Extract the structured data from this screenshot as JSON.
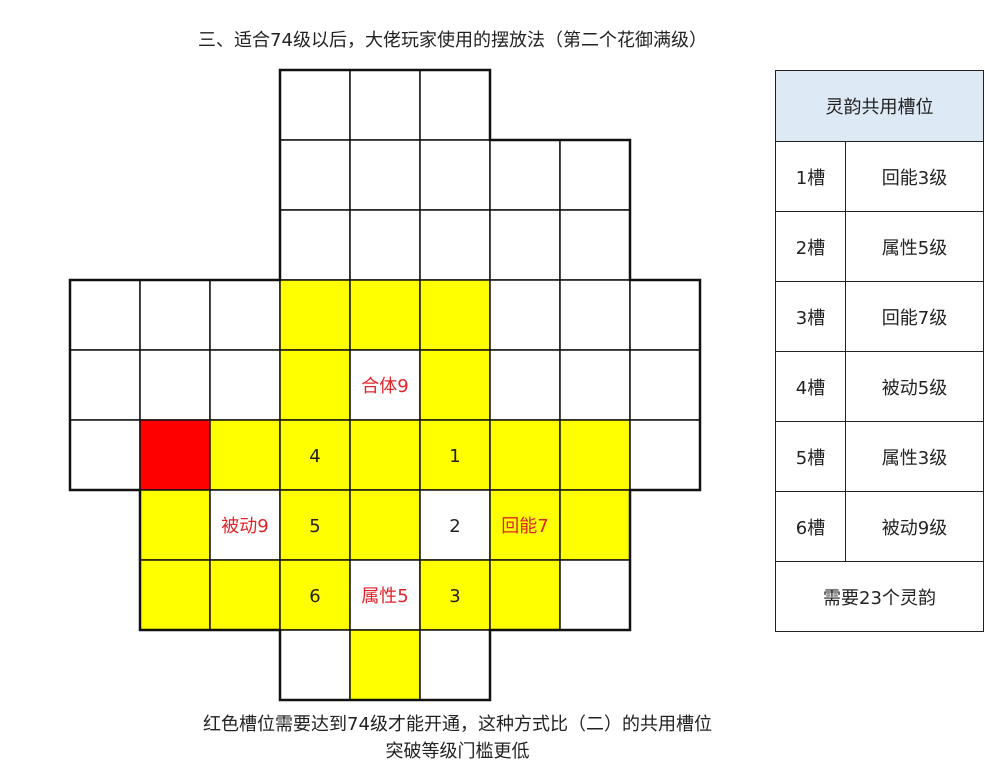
{
  "title": "三、适合74级以后，大佬玩家使用的摆放法（第二个花御满级）",
  "colors": {
    "yellow": "#ffff00",
    "red": "#ff0000",
    "label_red": "#e0242a",
    "header_blue": "#dde9f5"
  },
  "grid": {
    "legend": "Y=yellow, R=red, W=white, .=none",
    "rows": [
      "...WWW...",
      "...WWWWW.",
      "...WWWWW.",
      "WWWYYYWWW",
      "WWWYWYWWW",
      "WRYYYYYYW",
      ".YWYYWYY.",
      ".YYYWYYW.",
      "...WYW..."
    ],
    "labels": [
      {
        "row": 4,
        "col": 4,
        "text": "合体9",
        "color": "red"
      },
      {
        "row": 5,
        "col": 3,
        "text": "4",
        "color": "black"
      },
      {
        "row": 5,
        "col": 5,
        "text": "1",
        "color": "black"
      },
      {
        "row": 6,
        "col": 2,
        "text": "被动9",
        "color": "red"
      },
      {
        "row": 6,
        "col": 3,
        "text": "5",
        "color": "black"
      },
      {
        "row": 6,
        "col": 5,
        "text": "2",
        "color": "black"
      },
      {
        "row": 6,
        "col": 6,
        "text": "回能7",
        "color": "red"
      },
      {
        "row": 7,
        "col": 3,
        "text": "6",
        "color": "black"
      },
      {
        "row": 7,
        "col": 4,
        "text": "属性5",
        "color": "red"
      },
      {
        "row": 7,
        "col": 5,
        "text": "3",
        "color": "black"
      }
    ]
  },
  "table": {
    "header": "灵韵共用槽位",
    "rows": [
      {
        "slot": "1槽",
        "value": "回能3级"
      },
      {
        "slot": "2槽",
        "value": "属性5级"
      },
      {
        "slot": "3槽",
        "value": "回能7级"
      },
      {
        "slot": "4槽",
        "value": "被动5级"
      },
      {
        "slot": "5槽",
        "value": "属性3级"
      },
      {
        "slot": "6槽",
        "value": "被动9级"
      }
    ],
    "footer": "需要23个灵韵"
  },
  "notes": [
    "红色槽位需要达到74级才能开通，这种方式比（二）的共用槽位",
    "突破等级门槛更低"
  ]
}
